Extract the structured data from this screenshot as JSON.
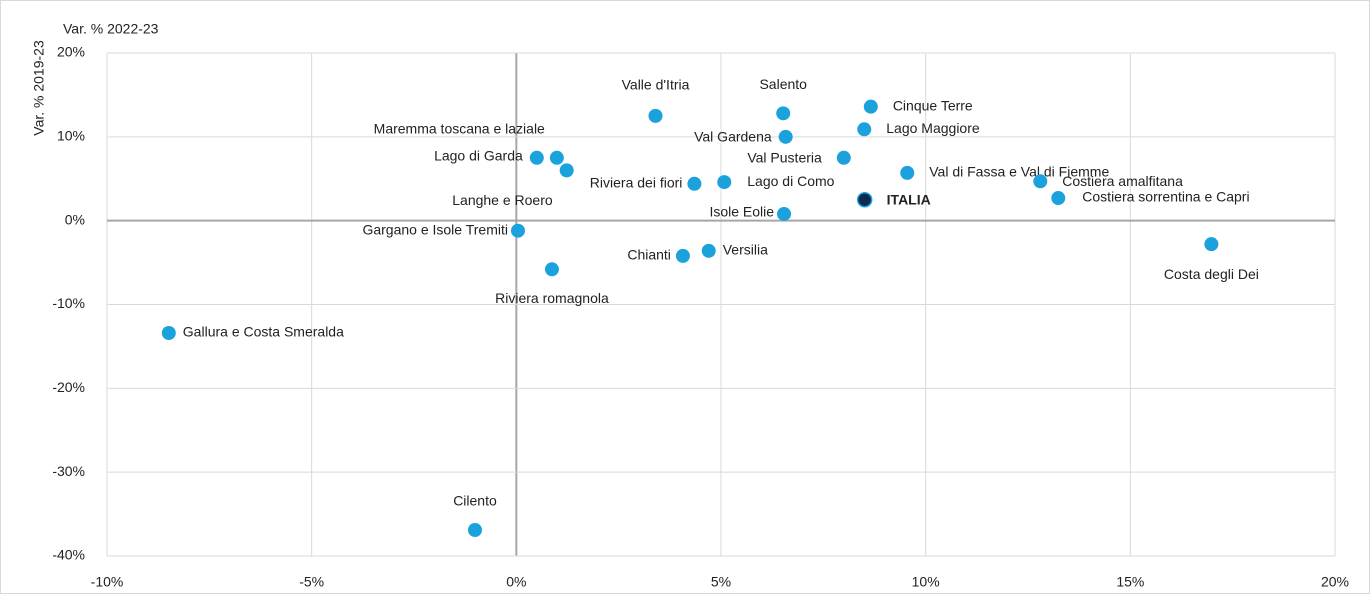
{
  "chart_data": {
    "type": "scatter",
    "xlabel": "Var. % 2022-23",
    "ylabel": "Var. % 2019-23",
    "xlim": [
      -10,
      20
    ],
    "ylim": [
      -40,
      20
    ],
    "xticks": [
      {
        "value": -10,
        "label": "-10%"
      },
      {
        "value": -5,
        "label": "-5%"
      },
      {
        "value": 0,
        "label": "0%"
      },
      {
        "value": 5,
        "label": "5%"
      },
      {
        "value": 10,
        "label": "10%"
      },
      {
        "value": 15,
        "label": "15%"
      },
      {
        "value": 20,
        "label": "20%"
      }
    ],
    "yticks": [
      {
        "value": -40,
        "label": "-40%"
      },
      {
        "value": -30,
        "label": "-30%"
      },
      {
        "value": -20,
        "label": "-20%"
      },
      {
        "value": -10,
        "label": "-10%"
      },
      {
        "value": 0,
        "label": "0%"
      },
      {
        "value": 10,
        "label": "10%"
      },
      {
        "value": 20,
        "label": "20%"
      }
    ],
    "grid": true,
    "labels": [
      "Gallura e Costa Smeralda",
      "Cilento",
      "Gargano e Isole Tremiti",
      "Riviera romagnola",
      "Lago di Garda",
      "Maremma toscana e laziale",
      "Langhe e Roero",
      "Valle d'Itria",
      "Riviera dei fiori",
      "Lago di Como",
      "Chianti",
      "Versilia",
      "Salento",
      "Val Gardena",
      "Isole Eolie",
      "Val Pusteria",
      "Lago Maggiore",
      "Cinque Terre",
      "ITALIA",
      "Val di Fassa e Val di Fiemme",
      "Costiera amalfitana",
      "Costiera sorrentina e Capri",
      "Costa degli Dei"
    ],
    "x": [
      -8.49,
      -1.01,
      0.04,
      0.87,
      0.5,
      0.99,
      1.23,
      3.4,
      4.35,
      5.08,
      4.07,
      4.7,
      6.52,
      6.58,
      6.54,
      8.0,
      8.5,
      8.66,
      8.51,
      9.55,
      12.8,
      13.24,
      16.98
    ],
    "y": [
      -13.4,
      -36.9,
      -1.2,
      -5.8,
      7.5,
      7.5,
      6.0,
      12.5,
      4.4,
      4.6,
      -4.2,
      -3.6,
      12.8,
      10.0,
      0.8,
      7.5,
      10.9,
      13.6,
      2.5,
      5.7,
      4.7,
      2.7,
      -2.8
    ],
    "colors": [
      "#1ba1dc",
      "#1ba1dc",
      "#1ba1dc",
      "#1ba1dc",
      "#1ba1dc",
      "#1ba1dc",
      "#1ba1dc",
      "#1ba1dc",
      "#1ba1dc",
      "#1ba1dc",
      "#1ba1dc",
      "#1ba1dc",
      "#1ba1dc",
      "#1ba1dc",
      "#1ba1dc",
      "#1ba1dc",
      "#1ba1dc",
      "#1ba1dc",
      "#0d2b4e",
      "#1ba1dc",
      "#1ba1dc",
      "#1ba1dc",
      "#1ba1dc"
    ]
  }
}
